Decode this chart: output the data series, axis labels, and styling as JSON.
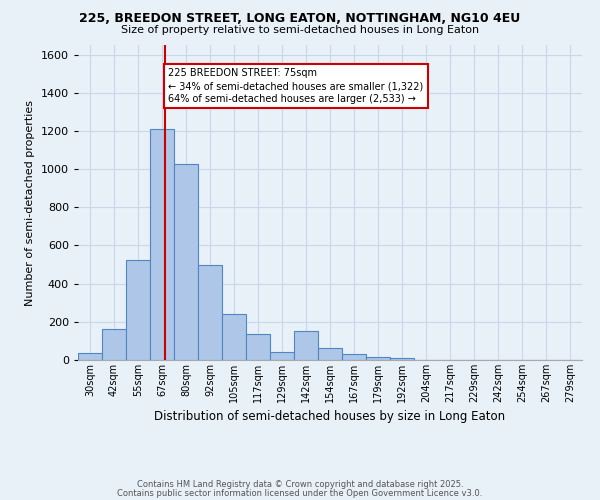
{
  "title1": "225, BREEDON STREET, LONG EATON, NOTTINGHAM, NG10 4EU",
  "title2": "Size of property relative to semi-detached houses in Long Eaton",
  "xlabel": "Distribution of semi-detached houses by size in Long Eaton",
  "ylabel": "Number of semi-detached properties",
  "categories": [
    "30sqm",
    "42sqm",
    "55sqm",
    "67sqm",
    "80sqm",
    "92sqm",
    "105sqm",
    "117sqm",
    "129sqm",
    "142sqm",
    "154sqm",
    "167sqm",
    "179sqm",
    "192sqm",
    "204sqm",
    "217sqm",
    "229sqm",
    "242sqm",
    "254sqm",
    "267sqm",
    "279sqm"
  ],
  "values": [
    35,
    165,
    525,
    1210,
    1025,
    500,
    240,
    135,
    40,
    150,
    65,
    30,
    15,
    10,
    0,
    0,
    0,
    0,
    0,
    0,
    0
  ],
  "bar_color": "#aec6e8",
  "bar_edge_color": "#4f87c5",
  "property_size_label": "225 BREEDON STREET: 75sqm",
  "pct_smaller": 34,
  "count_smaller": 1322,
  "pct_larger": 64,
  "count_larger": 2533,
  "vline_color": "#cc0000",
  "annotation_box_color": "#cc0000",
  "ylim": [
    0,
    1650
  ],
  "yticks": [
    0,
    200,
    400,
    600,
    800,
    1000,
    1200,
    1400,
    1600
  ],
  "grid_color": "#c8d8e8",
  "bg_color": "#e8f0f8",
  "footer1": "Contains HM Land Registry data © Crown copyright and database right 2025.",
  "footer2": "Contains public sector information licensed under the Open Government Licence v3.0."
}
